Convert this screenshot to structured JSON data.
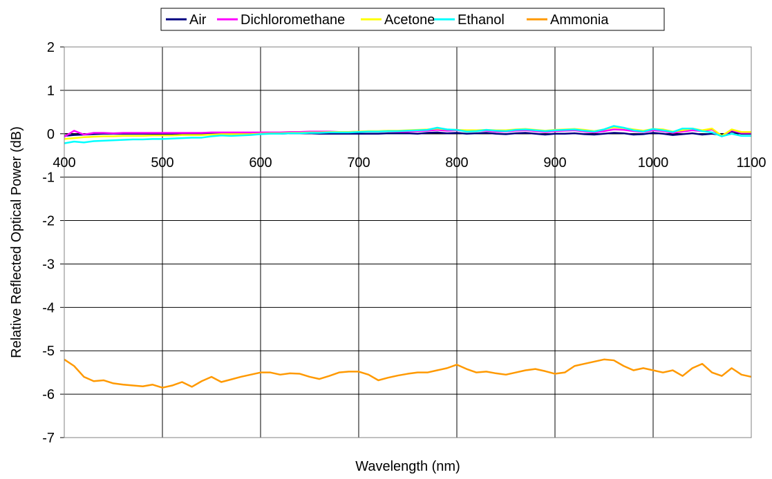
{
  "chart_data": {
    "type": "line",
    "title": "",
    "xlabel": "Wavelength (nm)",
    "ylabel": "Relative Reflected Optical Power (dB)",
    "xlim": [
      400,
      1100
    ],
    "ylim": [
      -7,
      2
    ],
    "x_ticks": [
      400,
      500,
      600,
      700,
      800,
      900,
      1000,
      1100
    ],
    "y_ticks": [
      2,
      1,
      0,
      -1,
      -2,
      -3,
      -4,
      -5,
      -6,
      -7
    ],
    "x_tick_labels": [
      "400",
      "500",
      "600",
      "700",
      "800",
      "900",
      "1000",
      "1100"
    ],
    "y_tick_labels": [
      "2",
      "1",
      "0",
      "-1",
      "-2",
      "-3",
      "-4",
      "-5",
      "-6",
      "-7"
    ],
    "grid": true,
    "legend_position": "top",
    "x": [
      400,
      410,
      420,
      430,
      440,
      450,
      460,
      470,
      480,
      490,
      500,
      510,
      520,
      530,
      540,
      550,
      560,
      570,
      580,
      590,
      600,
      610,
      620,
      630,
      640,
      650,
      660,
      670,
      680,
      690,
      700,
      710,
      720,
      730,
      740,
      750,
      760,
      770,
      780,
      790,
      800,
      810,
      820,
      830,
      840,
      850,
      860,
      870,
      880,
      890,
      900,
      910,
      920,
      930,
      940,
      950,
      960,
      970,
      980,
      990,
      1000,
      1010,
      1020,
      1030,
      1040,
      1050,
      1060,
      1070,
      1080,
      1090,
      1100
    ],
    "series": [
      {
        "name": "Air",
        "color": "#000080",
        "values": [
          -0.05,
          -0.03,
          -0.02,
          -0.01,
          0.0,
          0.0,
          0.0,
          0.0,
          0.0,
          0.0,
          0.0,
          0.0,
          0.0,
          0.0,
          0.0,
          0.0,
          0.01,
          0.01,
          0.01,
          0.01,
          0.0,
          0.0,
          0.0,
          0.01,
          0.01,
          0.01,
          0.0,
          0.0,
          0.0,
          0.0,
          0.0,
          0.0,
          0.0,
          0.01,
          0.01,
          0.01,
          0.0,
          0.02,
          0.03,
          0.01,
          0.02,
          0.0,
          0.01,
          0.02,
          0.0,
          -0.01,
          0.01,
          0.02,
          0.0,
          -0.02,
          0.0,
          0.0,
          0.01,
          -0.01,
          -0.02,
          0.0,
          0.02,
          0.01,
          -0.02,
          -0.01,
          0.02,
          0.0,
          -0.03,
          -0.01,
          0.01,
          -0.02,
          0.0,
          -0.03,
          0.05,
          0.0,
          0.0
        ]
      },
      {
        "name": "Dichloromethane",
        "color": "#ff00ff",
        "values": [
          -0.07,
          0.07,
          -0.02,
          0.02,
          0.02,
          0.01,
          0.02,
          0.02,
          0.02,
          0.02,
          0.02,
          0.02,
          0.02,
          0.02,
          0.02,
          0.03,
          0.03,
          0.03,
          0.03,
          0.03,
          0.03,
          0.03,
          0.03,
          0.04,
          0.04,
          0.05,
          0.05,
          0.05,
          0.04,
          0.04,
          0.05,
          0.05,
          0.05,
          0.06,
          0.05,
          0.05,
          0.06,
          0.07,
          0.09,
          0.07,
          0.08,
          0.06,
          0.07,
          0.07,
          0.05,
          0.05,
          0.07,
          0.08,
          0.06,
          0.04,
          0.06,
          0.07,
          0.08,
          0.05,
          0.03,
          0.06,
          0.1,
          0.09,
          0.06,
          0.04,
          0.08,
          0.06,
          0.02,
          0.05,
          0.08,
          0.06,
          0.1,
          -0.06,
          0.08,
          0.02,
          0.02
        ]
      },
      {
        "name": "Acetone",
        "color": "#ffff00",
        "values": [
          -0.12,
          -0.1,
          -0.08,
          -0.07,
          -0.06,
          -0.06,
          -0.05,
          -0.05,
          -0.05,
          -0.04,
          -0.04,
          -0.04,
          -0.03,
          -0.03,
          -0.03,
          -0.02,
          -0.01,
          -0.01,
          -0.01,
          -0.01,
          0.0,
          0.01,
          0.01,
          0.02,
          0.02,
          0.03,
          0.03,
          0.04,
          0.04,
          0.04,
          0.05,
          0.06,
          0.06,
          0.07,
          0.07,
          0.08,
          0.09,
          0.1,
          0.12,
          0.1,
          0.09,
          0.08,
          0.08,
          0.09,
          0.08,
          0.08,
          0.1,
          0.11,
          0.09,
          0.07,
          0.09,
          0.1,
          0.11,
          0.09,
          0.06,
          0.1,
          0.15,
          0.13,
          0.1,
          0.07,
          0.11,
          0.1,
          0.05,
          0.08,
          0.12,
          0.08,
          0.12,
          -0.05,
          0.1,
          0.04,
          0.04
        ]
      },
      {
        "name": "Ethanol",
        "color": "#00ffff",
        "values": [
          -0.22,
          -0.18,
          -0.2,
          -0.17,
          -0.16,
          -0.15,
          -0.14,
          -0.13,
          -0.13,
          -0.12,
          -0.12,
          -0.11,
          -0.1,
          -0.09,
          -0.09,
          -0.06,
          -0.04,
          -0.05,
          -0.04,
          -0.03,
          -0.01,
          0.0,
          0.0,
          0.01,
          0.01,
          0.02,
          0.02,
          0.03,
          0.03,
          0.03,
          0.04,
          0.05,
          0.05,
          0.06,
          0.06,
          0.07,
          0.08,
          0.09,
          0.14,
          0.1,
          0.09,
          0.05,
          0.06,
          0.09,
          0.07,
          0.06,
          0.09,
          0.1,
          0.08,
          0.06,
          0.08,
          0.09,
          0.1,
          0.07,
          0.05,
          0.1,
          0.18,
          0.14,
          0.08,
          0.05,
          0.11,
          0.08,
          0.04,
          0.12,
          0.12,
          0.06,
          0.03,
          -0.06,
          0.0,
          -0.05,
          -0.05
        ]
      },
      {
        "name": "Ammonia",
        "color": "#ff9900",
        "values": [
          -5.2,
          -5.35,
          -5.6,
          -5.7,
          -5.68,
          -5.75,
          -5.78,
          -5.8,
          -5.82,
          -5.78,
          -5.85,
          -5.8,
          -5.72,
          -5.83,
          -5.7,
          -5.6,
          -5.72,
          -5.66,
          -5.6,
          -5.55,
          -5.5,
          -5.5,
          -5.55,
          -5.52,
          -5.53,
          -5.6,
          -5.65,
          -5.58,
          -5.5,
          -5.48,
          -5.48,
          -5.55,
          -5.68,
          -5.62,
          -5.57,
          -5.53,
          -5.5,
          -5.5,
          -5.45,
          -5.4,
          -5.32,
          -5.42,
          -5.5,
          -5.48,
          -5.52,
          -5.55,
          -5.5,
          -5.45,
          -5.42,
          -5.47,
          -5.53,
          -5.5,
          -5.35,
          -5.3,
          -5.25,
          -5.2,
          -5.22,
          -5.35,
          -5.45,
          -5.4,
          -5.45,
          -5.5,
          -5.45,
          -5.58,
          -5.4,
          -5.3,
          -5.5,
          -5.58,
          -5.4,
          -5.55,
          -5.6
        ]
      }
    ]
  }
}
